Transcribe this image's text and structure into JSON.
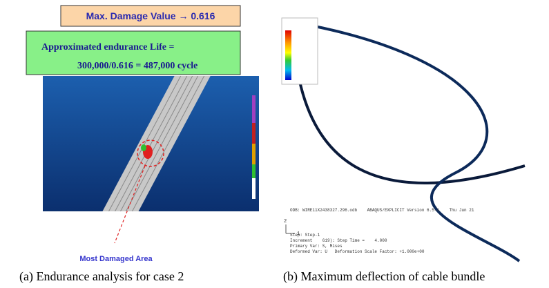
{
  "panel_a": {
    "damage_box": "Max. Damage Value → 0.616",
    "life_box": {
      "line1": "Approximated endurance Life =",
      "line2": "300,000/0.616 = 487,000 cycle"
    },
    "callout": "Most Damaged Area"
  },
  "panel_b": {
    "odb_lines": [
      "ODB: WIRE11X2438327.296.odb    ABAQUS/EXPLICIT Version 6.5-1    Thu Jun 21",
      "Step: Step-1",
      "Increment    619): Step Time =    4.000",
      "Primary Var: S, Mises",
      "Deformed Var: U   Deformation Scale Factor: +1.000e+00"
    ],
    "triad": [
      "2",
      "1"
    ]
  },
  "captions": [
    "(a) Endurance analysis for case 2",
    "(b) Maximum deflection of cable bundle"
  ]
}
